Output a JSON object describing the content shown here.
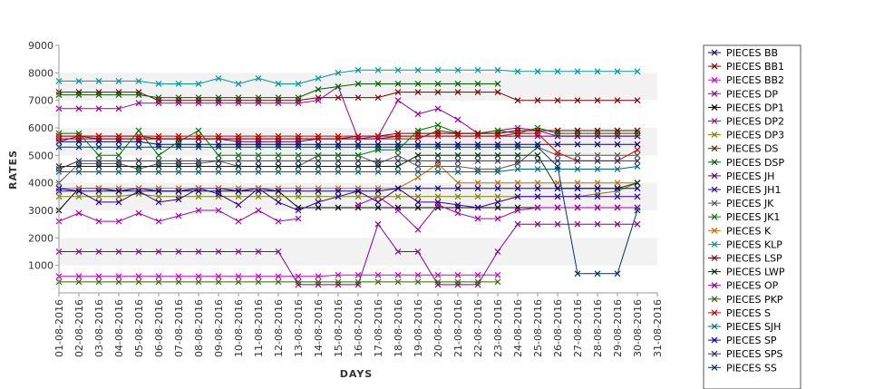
{
  "chart_data": {
    "type": "line",
    "xlabel": "DAYS",
    "ylabel": "RATES",
    "ylim": [
      0,
      9000
    ],
    "yticks": [
      1000,
      2000,
      3000,
      4000,
      5000,
      6000,
      7000,
      8000,
      9000
    ],
    "grid": "alternating horizontal bands",
    "legend_position": "right",
    "categories": [
      "01-08-2016",
      "02-08-2016",
      "03-08-2016",
      "04-08-2016",
      "05-08-2016",
      "06-08-2016",
      "07-08-2016",
      "08-08-2016",
      "09-08-2016",
      "10-08-2016",
      "11-08-2016",
      "12-08-2016",
      "13-08-2016",
      "14-08-2016",
      "15-08-2016",
      "16-08-2016",
      "17-08-2016",
      "18-08-2016",
      "19-08-2016",
      "20-08-2016",
      "21-08-2016",
      "22-08-2016",
      "23-08-2016",
      "24-08-2016",
      "25-08-2016",
      "26-08-2016",
      "27-08-2016",
      "28-08-2016",
      "29-08-2016",
      "30-08-2016",
      "31-08-2016"
    ],
    "series": [
      {
        "name": "PIECES BB",
        "color": "#000080",
        "values": [
          5500,
          5500,
          5500,
          5500,
          5500,
          5400,
          5400,
          5400,
          5400,
          5400,
          5400,
          5400,
          5400,
          5400,
          5400,
          5400,
          5400,
          5400,
          5400,
          5400,
          5400,
          5400,
          5400,
          5400,
          5400,
          5400,
          5400,
          5400,
          5400,
          5400,
          null
        ]
      },
      {
        "name": "PIECES BB1",
        "color": "#800000",
        "values": [
          7300,
          7300,
          7300,
          7300,
          7300,
          7000,
          7000,
          7000,
          7000,
          7000,
          7000,
          7000,
          7000,
          7100,
          7100,
          7100,
          7100,
          7300,
          7300,
          7300,
          7300,
          7300,
          7300,
          7000,
          7000,
          7000,
          7000,
          7000,
          7000,
          7000,
          null
        ]
      },
      {
        "name": "PIECES BB2",
        "color": "#cc00cc",
        "values": [
          600,
          600,
          600,
          600,
          600,
          600,
          600,
          600,
          600,
          600,
          600,
          600,
          600,
          600,
          650,
          650,
          650,
          650,
          650,
          650,
          650,
          650,
          650,
          null,
          null,
          null,
          null,
          null,
          null,
          null,
          null
        ]
      },
      {
        "name": "PIECES DP",
        "color": "#990099",
        "values": [
          6700,
          6700,
          6700,
          6700,
          6900,
          6900,
          6900,
          6900,
          6900,
          6900,
          6900,
          6900,
          6900,
          7000,
          7500,
          5600,
          5700,
          7000,
          6500,
          6700,
          6300,
          5800,
          5900,
          6000,
          5900,
          5700,
          5700,
          5700,
          5700,
          5700,
          null
        ]
      },
      {
        "name": "PIECES DP1",
        "color": "#000000",
        "values": [
          3000,
          3800,
          3800,
          3700,
          3800,
          3700,
          3700,
          3800,
          3800,
          3700,
          3800,
          3700,
          3100,
          3100,
          3100,
          3100,
          3100,
          3100,
          3100,
          3100,
          3100,
          3100,
          3100,
          3100,
          3100,
          3100,
          3100,
          3100,
          3100,
          3100,
          null
        ]
      },
      {
        "name": "PIECES DP2",
        "color": "#aa00aa",
        "values": [
          2600,
          2900,
          2600,
          2600,
          2900,
          2600,
          2800,
          3000,
          3000,
          2600,
          3000,
          2600,
          2700,
          null,
          null,
          3200,
          3500,
          3000,
          2300,
          3200,
          2900,
          2700,
          2700,
          3000,
          3100,
          3100,
          3100,
          3100,
          3100,
          3100,
          null
        ]
      },
      {
        "name": "PIECES DP3",
        "color": "#808000",
        "values": [
          3500,
          3500,
          3500,
          3500,
          3600,
          3500,
          3500,
          3500,
          3500,
          3500,
          3500,
          3500,
          3500,
          3500,
          3500,
          3500,
          3500,
          3500,
          3500,
          3500,
          3500,
          3500,
          3500,
          3500,
          3500,
          3500,
          3500,
          3600,
          3700,
          4000,
          null
        ]
      },
      {
        "name": "PIECES DS",
        "color": "#603000",
        "values": [
          5700,
          5700,
          5700,
          5700,
          5700,
          5600,
          5600,
          5600,
          5600,
          5600,
          5600,
          5600,
          5600,
          5600,
          5600,
          5600,
          5600,
          5600,
          5600,
          5900,
          5800,
          5800,
          5800,
          5900,
          5900,
          5900,
          5900,
          5900,
          5900,
          5900,
          null
        ]
      },
      {
        "name": "PIECES DSP",
        "color": "#006000",
        "values": [
          7200,
          7200,
          7200,
          7200,
          7200,
          7100,
          7100,
          7100,
          7100,
          7100,
          7100,
          7100,
          7100,
          7400,
          7500,
          7600,
          7600,
          7600,
          7600,
          7600,
          7600,
          7600,
          7600,
          null,
          null,
          null,
          null,
          null,
          null,
          null,
          null
        ]
      },
      {
        "name": "PIECES JH",
        "color": "#660066",
        "values": [
          5500,
          5700,
          5600,
          5600,
          5600,
          5600,
          5600,
          5600,
          5600,
          5500,
          5500,
          5500,
          5500,
          5600,
          5600,
          5600,
          5600,
          5700,
          5700,
          5700,
          5700,
          5700,
          5700,
          5700,
          5700,
          5700,
          5700,
          5700,
          5700,
          5700,
          null
        ]
      },
      {
        "name": "PIECES JH1",
        "color": "#330099",
        "values": [
          3700,
          3700,
          3300,
          3300,
          3700,
          3300,
          3400,
          3800,
          3600,
          3200,
          3800,
          3300,
          3000,
          3300,
          3500,
          3700,
          3300,
          3800,
          3300,
          3300,
          3200,
          3100,
          3300,
          3500,
          3500,
          3500,
          3500,
          3500,
          3500,
          3500,
          null
        ]
      },
      {
        "name": "PIECES JK",
        "color": "#555555",
        "values": [
          4000,
          4700,
          4700,
          4700,
          4500,
          4700,
          4700,
          4700,
          4800,
          4600,
          4600,
          4600,
          4600,
          5000,
          5000,
          5000,
          4700,
          5000,
          4600,
          4600,
          4600,
          4500,
          4500,
          4700,
          5300,
          5000,
          5000,
          5000,
          5000,
          5000,
          null
        ]
      },
      {
        "name": "PIECES JK1",
        "color": "#007700",
        "values": [
          5800,
          5800,
          5000,
          5000,
          5900,
          5000,
          5500,
          5900,
          5000,
          5000,
          5000,
          5000,
          5000,
          5000,
          5000,
          5000,
          5200,
          5200,
          5900,
          6100,
          5800,
          5800,
          5900,
          5800,
          6000,
          5800,
          5800,
          5800,
          5800,
          5800,
          null
        ]
      },
      {
        "name": "PIECES K",
        "color": "#cc6600",
        "values": [
          3800,
          3800,
          3800,
          3800,
          3800,
          3800,
          3800,
          3800,
          3800,
          3800,
          3800,
          3800,
          3800,
          3800,
          3800,
          3800,
          3800,
          3800,
          4200,
          4700,
          4000,
          4000,
          4000,
          4000,
          4000,
          4000,
          4000,
          4000,
          4000,
          4000,
          null
        ]
      },
      {
        "name": "PIECES KLP",
        "color": "#009999",
        "values": [
          7700,
          7700,
          7700,
          7700,
          7700,
          7600,
          7600,
          7600,
          7800,
          7600,
          7800,
          7600,
          7600,
          7800,
          8000,
          8100,
          8100,
          8100,
          8100,
          8100,
          8100,
          8100,
          8100,
          8050,
          8050,
          8050,
          8050,
          8050,
          8050,
          8050,
          null
        ]
      },
      {
        "name": "PIECES LSP",
        "color": "#800000",
        "values": [
          5600,
          5600,
          5600,
          5600,
          5600,
          5600,
          5600,
          5600,
          5600,
          5600,
          5600,
          5600,
          5600,
          5600,
          5600,
          5700,
          5700,
          5800,
          5800,
          5800,
          5800,
          5800,
          5800,
          5900,
          5900,
          5900,
          5900,
          5900,
          5900,
          5900,
          null
        ]
      },
      {
        "name": "PIECES LWP",
        "color": "#003300",
        "values": [
          4600,
          4600,
          4600,
          4600,
          4600,
          4600,
          4600,
          4600,
          4600,
          4600,
          4600,
          4600,
          4600,
          4600,
          4600,
          4600,
          4600,
          4600,
          5000,
          5000,
          5000,
          5000,
          5000,
          5000,
          5000,
          3800,
          3800,
          3800,
          3800,
          4000,
          null
        ]
      },
      {
        "name": "PIECES OP",
        "color": "#880088",
        "values": [
          1500,
          1500,
          1500,
          1500,
          1500,
          1500,
          1500,
          1500,
          1500,
          1500,
          1500,
          1500,
          300,
          300,
          300,
          300,
          2500,
          1500,
          1500,
          300,
          300,
          300,
          1500,
          2500,
          2500,
          2500,
          2500,
          2500,
          2500,
          2500,
          null
        ]
      },
      {
        "name": "PIECES PKP",
        "color": "#336600",
        "values": [
          400,
          400,
          400,
          400,
          400,
          400,
          400,
          400,
          400,
          400,
          400,
          400,
          400,
          400,
          400,
          400,
          400,
          400,
          400,
          400,
          400,
          400,
          400,
          null,
          null,
          null,
          null,
          null,
          null,
          null,
          null
        ]
      },
      {
        "name": "PIECES S",
        "color": "#cc0000",
        "values": [
          5700,
          5700,
          5700,
          5700,
          5700,
          5700,
          5700,
          5700,
          5700,
          5700,
          5700,
          5700,
          5700,
          5700,
          5700,
          5700,
          5700,
          5700,
          5700,
          5700,
          5700,
          5700,
          5700,
          5800,
          5800,
          5100,
          4800,
          4800,
          4800,
          5200,
          null
        ]
      },
      {
        "name": "PIECES SJH",
        "color": "#006680",
        "values": [
          4400,
          4400,
          4400,
          4400,
          4400,
          4400,
          4400,
          4400,
          4400,
          4400,
          4400,
          4400,
          4400,
          4400,
          4400,
          4400,
          4400,
          4400,
          4400,
          4400,
          4400,
          4400,
          4400,
          4500,
          4500,
          4500,
          4500,
          4500,
          4500,
          4600,
          null
        ]
      },
      {
        "name": "PIECES SP",
        "color": "#0000aa",
        "values": [
          3800,
          3700,
          3700,
          3700,
          3700,
          3700,
          3700,
          3700,
          3700,
          3700,
          3700,
          3700,
          3700,
          3700,
          3700,
          3700,
          3700,
          3800,
          3800,
          3800,
          3800,
          3800,
          3800,
          3800,
          3800,
          3800,
          3800,
          3800,
          3800,
          3800,
          null
        ]
      },
      {
        "name": "PIECES SPS",
        "color": "#333366",
        "values": [
          4500,
          4800,
          4800,
          4800,
          4800,
          4800,
          4800,
          4800,
          4800,
          4800,
          4800,
          4800,
          4800,
          4800,
          4800,
          4800,
          4800,
          4800,
          4800,
          4800,
          4800,
          4800,
          4800,
          4800,
          4800,
          4800,
          4800,
          4800,
          4800,
          4800,
          null
        ]
      },
      {
        "name": "PIECES SS",
        "color": "#003366",
        "values": [
          5300,
          5300,
          5300,
          5300,
          5300,
          5300,
          5300,
          5300,
          5300,
          5300,
          5300,
          5300,
          5300,
          5300,
          5300,
          5300,
          5300,
          5300,
          5300,
          5300,
          5300,
          5300,
          5300,
          5300,
          5300,
          4600,
          700,
          700,
          700,
          3000,
          null
        ]
      }
    ]
  }
}
